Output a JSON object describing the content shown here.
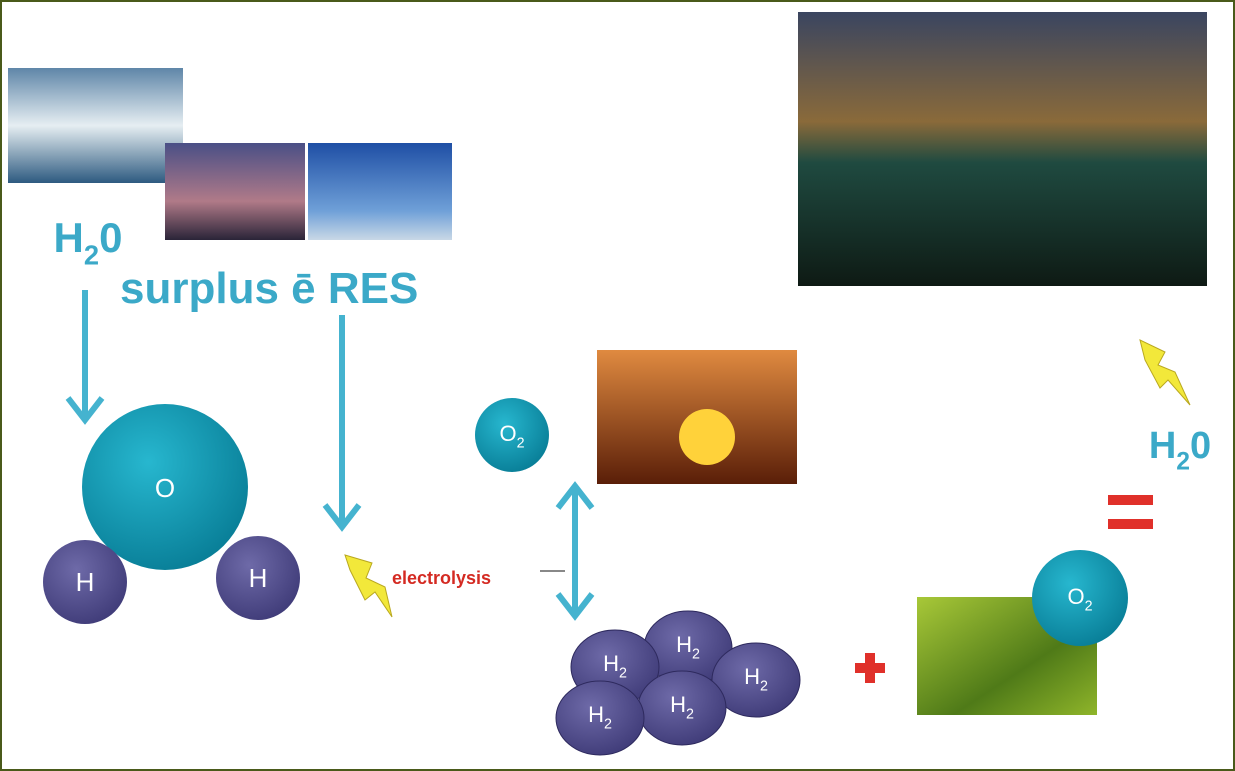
{
  "labels": {
    "water_left": {
      "main": "H",
      "sub": "2",
      "tail": "0"
    },
    "surplus": "surplus ē RES",
    "electrolysis": "electrolysis",
    "water_right": {
      "main": "H",
      "sub": "2",
      "tail": "0"
    }
  },
  "molecule": {
    "oxygen": "O",
    "hydrogen_left": "H",
    "hydrogen_right": "H"
  },
  "oxygen_molecules": [
    {
      "main": "O",
      "sub": "2"
    },
    {
      "main": "O",
      "sub": "2"
    }
  ],
  "hydrogen_molecules": [
    {
      "main": "H",
      "sub": "2"
    },
    {
      "main": "H",
      "sub": "2"
    },
    {
      "main": "H",
      "sub": "2"
    },
    {
      "main": "H",
      "sub": "2"
    },
    {
      "main": "H",
      "sub": "2"
    }
  ]
}
